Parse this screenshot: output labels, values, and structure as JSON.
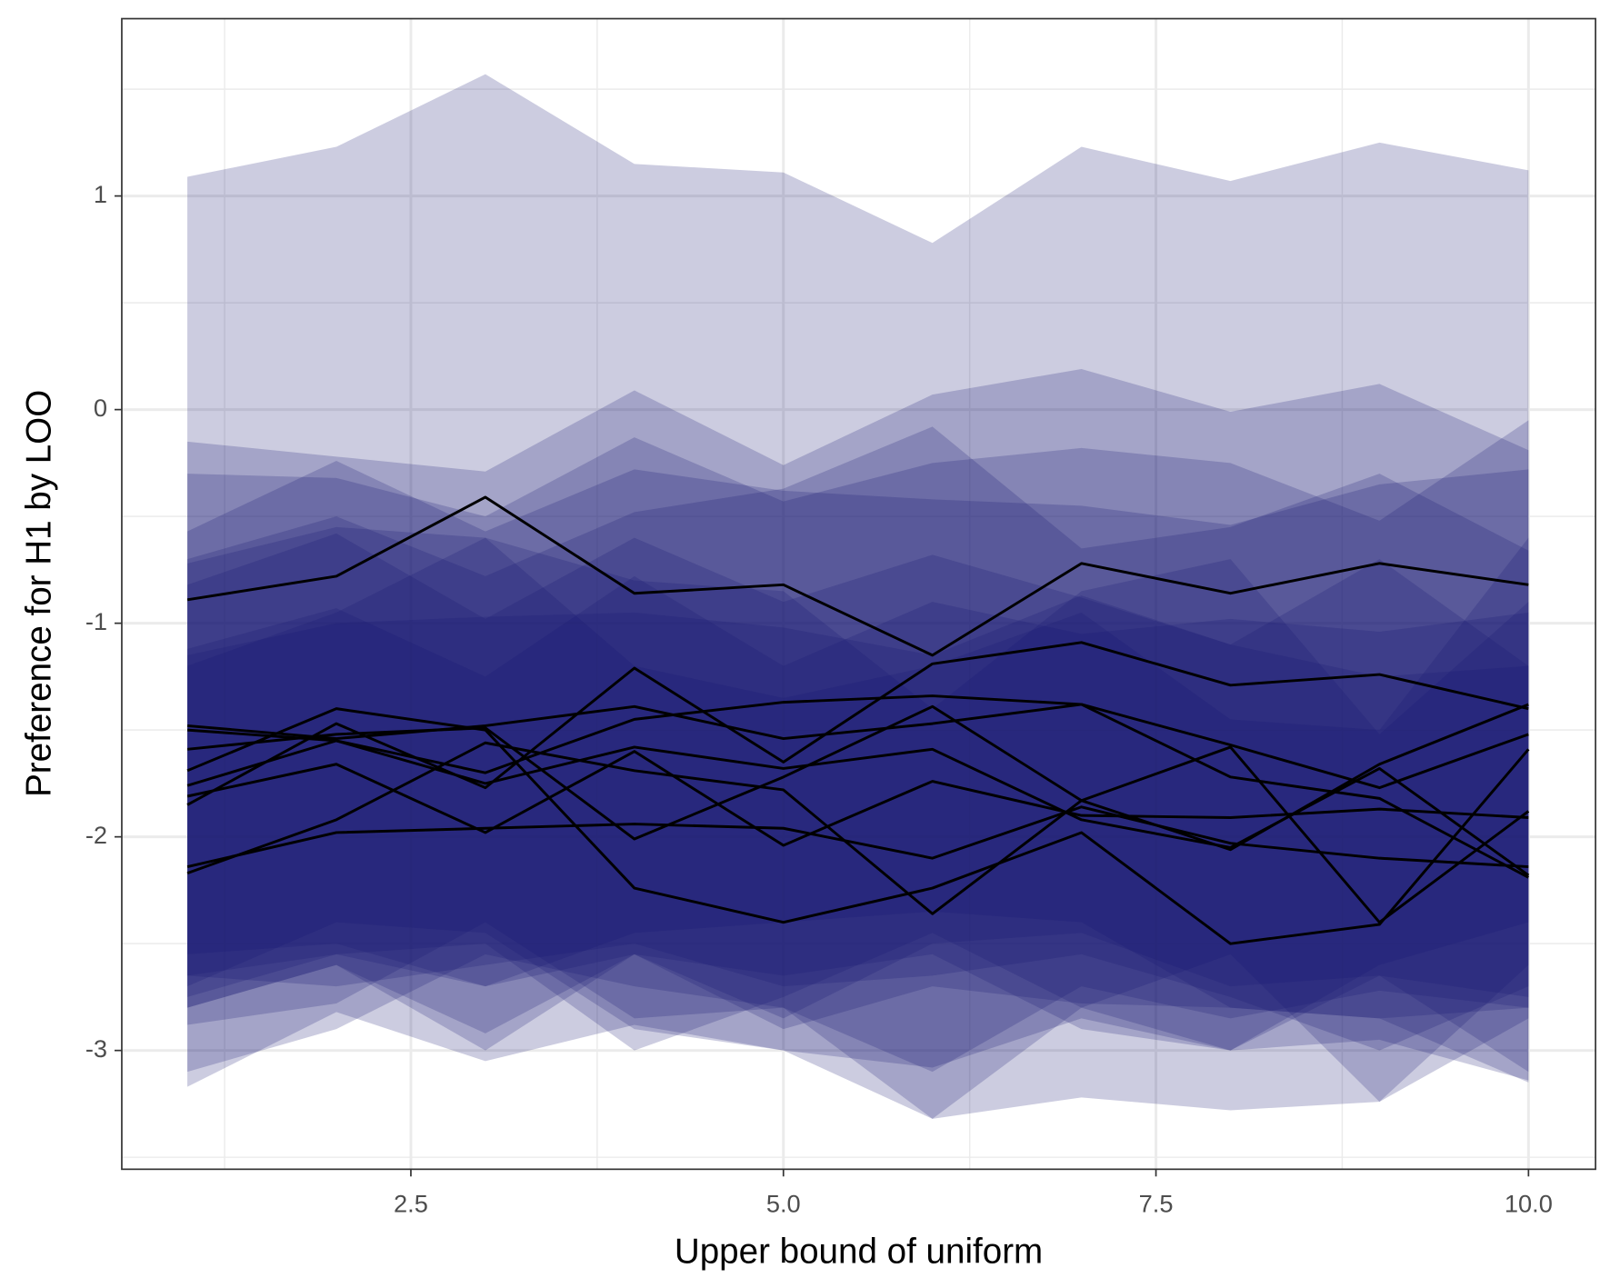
{
  "chart_data": {
    "type": "ribbon-line",
    "x_label": "Upper bound of uniform",
    "y_label": "Preference for H1 by LOO",
    "x": [
      1,
      2,
      3,
      4,
      5,
      6,
      7,
      8,
      9,
      10
    ],
    "xlim": [
      0.56,
      10.45
    ],
    "ylim": [
      -3.556,
      1.83
    ],
    "xticks": [
      {
        "value": 2.5,
        "label": "2.5"
      },
      {
        "value": 5,
        "label": "5.0"
      },
      {
        "value": 7.5,
        "label": "7.5"
      },
      {
        "value": 10,
        "label": "10.0"
      }
    ],
    "yticks": [
      1,
      0,
      -1,
      -2,
      -3
    ],
    "xminor": [
      1.25,
      3.75,
      6.25,
      8.75
    ],
    "yminor": [
      1.5,
      0.5,
      -0.5,
      -1.5,
      -2.5,
      -3.5
    ],
    "grid": true,
    "line_color": "#000000",
    "ribbon_color": "#191970",
    "ribbon_opacity": 0.22,
    "series": [
      {
        "values": [
          -0.89,
          -0.78,
          -0.41,
          -0.86,
          -0.82,
          -1.15,
          -0.72,
          -0.86,
          -0.72,
          -0.82
        ],
        "upper": [
          1.09,
          1.23,
          1.57,
          1.15,
          1.11,
          0.78,
          1.23,
          1.07,
          1.25,
          1.12
        ],
        "lower": [
          -2.88,
          -2.78,
          -2.4,
          -2.85,
          -2.8,
          -3.1,
          -2.7,
          -2.85,
          -2.72,
          -2.8
        ]
      },
      {
        "values": [
          -1.85,
          -1.47,
          -1.77,
          -1.21,
          -1.65,
          -1.19,
          -1.09,
          -1.29,
          -1.24,
          -1.4
        ],
        "upper": [
          -0.15,
          -0.22,
          -0.29,
          0.09,
          -0.26,
          0.07,
          0.19,
          -0.01,
          0.12,
          -0.19
        ],
        "lower": [
          -2.8,
          -2.6,
          -3.0,
          -2.55,
          -2.85,
          -2.5,
          -2.45,
          -2.7,
          -2.65,
          -2.75
        ]
      },
      {
        "values": [
          -1.48,
          -1.54,
          -1.48,
          -1.39,
          -1.54,
          -1.47,
          -1.38,
          -1.57,
          -1.77,
          -1.52
        ],
        "upper": [
          -0.3,
          -0.32,
          -0.5,
          -0.13,
          -0.43,
          -0.25,
          -0.18,
          -0.25,
          -0.52,
          -0.05
        ],
        "lower": [
          -2.65,
          -2.7,
          -2.6,
          -2.5,
          -2.7,
          -2.65,
          -2.55,
          -2.75,
          -3.0,
          -2.7
        ]
      },
      {
        "values": [
          -1.5,
          -1.55,
          -1.7,
          -1.45,
          -1.37,
          -1.34,
          -1.38,
          -1.72,
          -1.82,
          -2.19
        ],
        "upper": [
          -0.57,
          -0.24,
          -0.57,
          -0.28,
          -0.38,
          -0.42,
          -0.45,
          -0.54,
          -0.35,
          -0.28
        ],
        "lower": [
          -2.55,
          -2.5,
          -2.7,
          -2.45,
          -2.4,
          -2.35,
          -2.4,
          -2.8,
          -2.85,
          -3.15
        ]
      },
      {
        "values": [
          -1.59,
          -1.52,
          -1.49,
          -2.01,
          -1.72,
          -1.39,
          -1.83,
          -2.06,
          -1.66,
          -1.38
        ],
        "upper": [
          -0.7,
          -0.5,
          -0.78,
          -0.48,
          -0.37,
          -0.08,
          -0.65,
          -0.55,
          -0.3,
          -0.66
        ],
        "lower": [
          -2.65,
          -2.55,
          -2.5,
          -3.0,
          -2.75,
          -2.45,
          -2.8,
          -3.0,
          -2.6,
          -2.4
        ]
      },
      {
        "values": [
          -1.69,
          -1.4,
          -1.5,
          -2.24,
          -2.4,
          -2.24,
          -1.98,
          -2.5,
          -2.41,
          -1.59
        ],
        "upper": [
          -0.72,
          -0.55,
          -0.6,
          -1.2,
          -1.35,
          -1.2,
          -0.95,
          -1.45,
          -1.5,
          -0.6
        ],
        "lower": [
          -2.7,
          -2.4,
          -2.45,
          -2.9,
          -3.0,
          -3.32,
          -3.22,
          -3.28,
          -3.24,
          -2.6
        ]
      },
      {
        "values": [
          -1.76,
          -1.55,
          -1.75,
          -1.58,
          -1.68,
          -1.59,
          -1.92,
          -2.05,
          -1.68,
          -2.18
        ],
        "upper": [
          -0.82,
          -0.58,
          -0.98,
          -0.6,
          -0.9,
          -0.68,
          -0.88,
          -1.1,
          -0.7,
          -1.2
        ],
        "lower": [
          -2.75,
          -2.55,
          -2.7,
          -2.55,
          -2.65,
          -2.55,
          -2.9,
          -3.0,
          -2.65,
          -3.1
        ]
      },
      {
        "values": [
          -1.81,
          -1.66,
          -1.98,
          -1.6,
          -2.04,
          -1.74,
          -1.9,
          -1.91,
          -1.87,
          -1.91
        ],
        "upper": [
          -1.12,
          -0.93,
          -1.25,
          -0.78,
          -1.2,
          -0.9,
          -1.05,
          -0.98,
          -1.04,
          -0.95
        ],
        "lower": [
          -2.8,
          -2.6,
          -2.92,
          -2.55,
          -2.9,
          -2.7,
          -2.78,
          -2.8,
          -2.85,
          -2.8
        ]
      },
      {
        "values": [
          -2.14,
          -1.98,
          -1.96,
          -1.94,
          -1.96,
          -2.1,
          -1.86,
          -2.03,
          -2.1,
          -2.14
        ],
        "upper": [
          -1.15,
          -1.0,
          -0.97,
          -0.95,
          -1.02,
          -1.15,
          -0.87,
          -1.1,
          -1.25,
          -1.2
        ],
        "lower": [
          -3.17,
          -2.82,
          -3.05,
          -2.88,
          -3.0,
          -3.08,
          -2.85,
          -3.0,
          -2.95,
          -3.14
        ]
      },
      {
        "values": [
          -2.17,
          -1.92,
          -1.56,
          -1.69,
          -1.78,
          -2.36,
          -1.83,
          -1.58,
          -2.4,
          -1.88
        ],
        "upper": [
          -1.2,
          -0.95,
          -0.6,
          -0.8,
          -0.85,
          -1.4,
          -0.85,
          -0.7,
          -1.52,
          -0.9
        ],
        "lower": [
          -3.1,
          -2.9,
          -2.55,
          -2.7,
          -2.8,
          -3.32,
          -2.8,
          -2.55,
          -3.24,
          -2.85
        ]
      }
    ]
  }
}
